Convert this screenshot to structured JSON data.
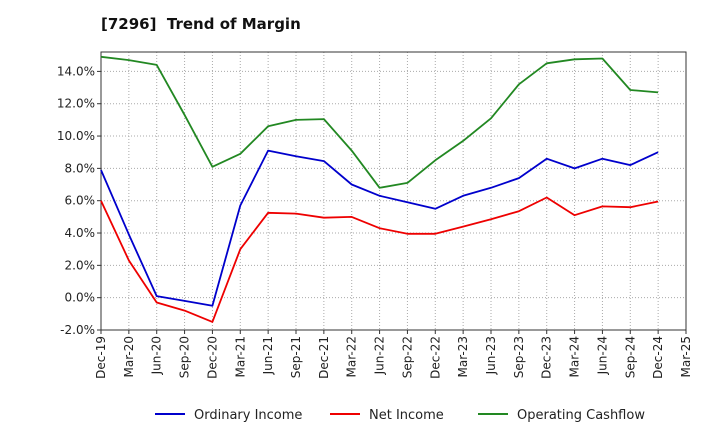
{
  "chart_data": {
    "type": "line",
    "title": "[7296]  Trend of Margin",
    "x_tick_labels": [
      "Dec-19",
      "Mar-20",
      "Jun-20",
      "Sep-20",
      "Dec-20",
      "Mar-21",
      "Jun-21",
      "Sep-21",
      "Dec-21",
      "Mar-22",
      "Jun-22",
      "Sep-22",
      "Dec-22",
      "Mar-23",
      "Jun-23",
      "Sep-23",
      "Dec-23",
      "Mar-24",
      "Jun-24",
      "Sep-24",
      "Dec-24",
      "Mar-25"
    ],
    "y_tick_labels": [
      "-2.0%",
      "0.0%",
      "2.0%",
      "4.0%",
      "6.0%",
      "8.0%",
      "10.0%",
      "12.0%",
      "14.0%"
    ],
    "y_ticks": [
      -2,
      0,
      2,
      4,
      6,
      8,
      10,
      12,
      14
    ],
    "ylim": [
      -2.0,
      15.2
    ],
    "grid": true,
    "legend_position": "bottom",
    "series": [
      {
        "name": "Ordinary Income",
        "color": "#0000cc",
        "values": [
          7.9,
          3.9,
          0.1,
          -0.2,
          -0.5,
          5.7,
          9.1,
          8.75,
          8.45,
          7.0,
          6.3,
          5.9,
          5.5,
          6.3,
          6.8,
          7.4,
          8.6,
          8.0,
          8.6,
          8.2,
          9.0
        ]
      },
      {
        "name": "Net Income",
        "color": "#ee0000",
        "values": [
          6.0,
          2.3,
          -0.3,
          -0.8,
          -1.5,
          3.0,
          5.25,
          5.2,
          4.95,
          5.0,
          4.3,
          3.95,
          3.95,
          4.4,
          4.85,
          5.35,
          6.2,
          5.1,
          5.65,
          5.6,
          5.95
        ]
      },
      {
        "name": "Operating Cashflow",
        "color": "#228822",
        "values": [
          14.9,
          14.7,
          14.4,
          11.3,
          8.1,
          8.9,
          10.6,
          11.0,
          11.05,
          9.1,
          6.8,
          7.1,
          8.5,
          9.7,
          11.1,
          13.2,
          14.5,
          14.75,
          14.8,
          12.85,
          12.7
        ]
      }
    ]
  }
}
